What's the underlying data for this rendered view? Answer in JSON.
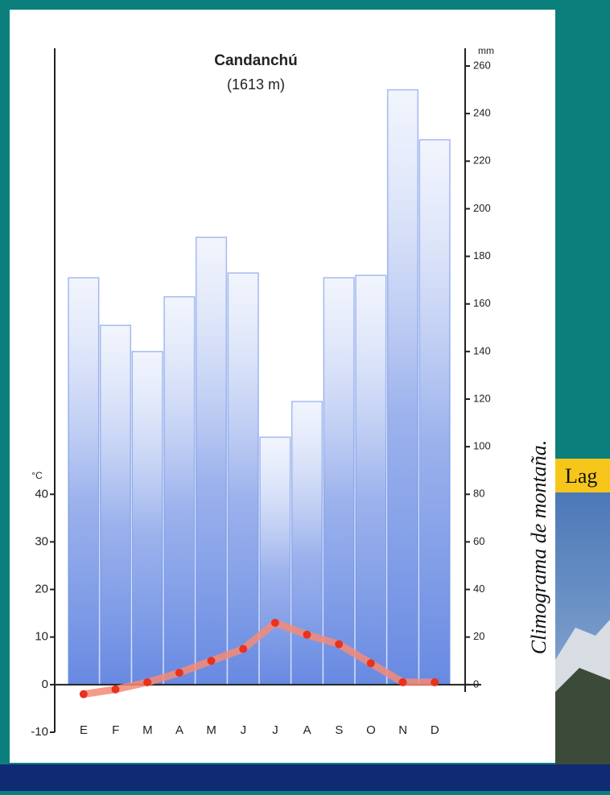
{
  "chart_data": {
    "type": "climograph",
    "title": "Candanchú",
    "subtitle": "(1613 m)",
    "categories": [
      "E",
      "F",
      "M",
      "A",
      "M",
      "J",
      "J",
      "A",
      "S",
      "O",
      "N",
      "D"
    ],
    "series": [
      {
        "type": "bar",
        "axis": "y2",
        "color": "#6d8fe6",
        "values": [
          171,
          151,
          140,
          163,
          188,
          173,
          104,
          119,
          171,
          172,
          250,
          229
        ]
      },
      {
        "type": "line",
        "axis": "y",
        "color": "#f58a78",
        "values": [
          -2,
          -1,
          0.5,
          2.5,
          5,
          7.5,
          13,
          10.5,
          8.5,
          4.5,
          0.5,
          0.5
        ]
      }
    ],
    "ylabel": "°C",
    "ylim": [
      -10,
      130
    ],
    "yticks": [
      -10,
      0,
      10,
      20,
      30,
      40
    ],
    "y2label": "mm",
    "y2lim": [
      -20,
      260
    ],
    "y2ticks": [
      0,
      20,
      40,
      60,
      80,
      100,
      120,
      140,
      160,
      180,
      200,
      220,
      240,
      260
    ]
  },
  "side_caption": "Climograma de montaña.",
  "photo_label": "Lag"
}
